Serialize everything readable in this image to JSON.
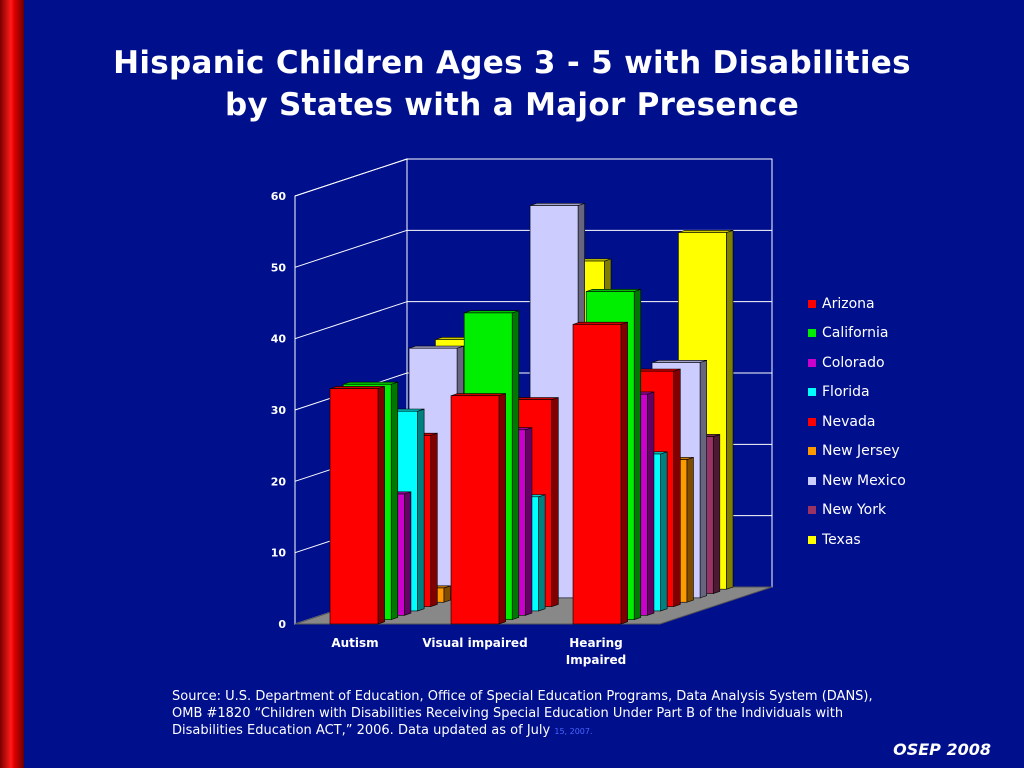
{
  "slide": {
    "title_line1": "Hispanic Children Ages 3 - 5 with Disabilities",
    "title_line2": "by States with a Major Presence",
    "source_main": "Source: U.S. Department of Education, Office of Special Education Programs, Data Analysis System (DANS), OMB #1820 “Children with Disabilities Receiving Special Education Under Part B of the Individuals with Disabilities Education ACT,” 2006. Data updated as of July",
    "source_small": "15, 2007.",
    "footer": "OSEP 2008",
    "colors": {
      "background": "#000f8c",
      "accent_bar": "#ff0000"
    }
  },
  "chart_data": {
    "type": "bar",
    "style": "3d-clustered",
    "title": "",
    "xlabel": "",
    "ylabel": "",
    "ylim": [
      0,
      60
    ],
    "yticks": [
      "0",
      "10",
      "20",
      "30",
      "40",
      "50",
      "60"
    ],
    "grid": true,
    "legend_position": "right",
    "categories": [
      "Autism",
      "Visual impaired",
      "Hearing Impaired"
    ],
    "series": [
      {
        "name": "Arizona",
        "color": "#ff0000",
        "values": [
          33,
          32,
          42
        ]
      },
      {
        "name": "California",
        "color": "#00ee00",
        "values": [
          33,
          43,
          46
        ]
      },
      {
        "name": "Colorado",
        "color": "#cc00cc",
        "values": [
          17,
          26,
          31
        ]
      },
      {
        "name": "Florida",
        "color": "#00ffff",
        "values": [
          28,
          16,
          22
        ]
      },
      {
        "name": "Nevada",
        "color": "#ff0000",
        "values": [
          24,
          29,
          33
        ]
      },
      {
        "name": "New Jersey",
        "color": "#ff9900",
        "values": [
          2,
          0,
          20
        ]
      },
      {
        "name": "New Mexico",
        "color": "#ccccff",
        "values": [
          35,
          55,
          33
        ]
      },
      {
        "name": "New York",
        "color": "#993366",
        "values": [
          13,
          24,
          22
        ]
      },
      {
        "name": "Texas",
        "color": "#ffff00",
        "values": [
          35,
          46,
          50
        ]
      }
    ]
  }
}
